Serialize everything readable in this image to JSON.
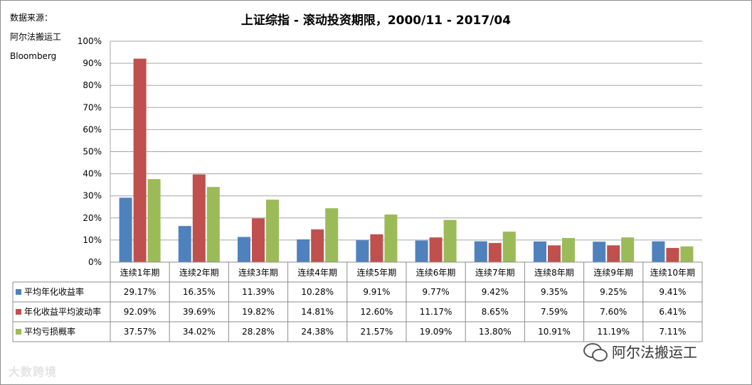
{
  "source": {
    "lines": [
      "数据来源：",
      "阿尔法搬运工",
      "Bloomberg"
    ]
  },
  "watermarks": {
    "left": "大数跨境",
    "right": "阿尔法搬运工"
  },
  "chart_data": {
    "type": "bar",
    "title": "上证综指 - 滚动投资期限，2000/11 - 2017/04",
    "xlabel": "",
    "ylabel": "",
    "ylim": [
      0,
      100
    ],
    "yticks": [
      "0%",
      "10%",
      "20%",
      "30%",
      "40%",
      "50%",
      "60%",
      "70%",
      "80%",
      "90%",
      "100%"
    ],
    "grid": true,
    "legend": "table-left",
    "categories": [
      "连续1年期",
      "连续2年期",
      "连续3年期",
      "连续4年期",
      "连续5年期",
      "连续6年期",
      "连续7年期",
      "连续8年期",
      "连续9年期",
      "连续10年期"
    ],
    "series": [
      {
        "name": "平均年化收益率",
        "color": "#4f81bd",
        "values": [
          29.17,
          16.35,
          11.39,
          10.28,
          9.91,
          9.77,
          9.42,
          9.35,
          9.25,
          9.41
        ],
        "labels": [
          "29.17%",
          "16.35%",
          "11.39%",
          "10.28%",
          "9.91%",
          "9.77%",
          "9.42%",
          "9.35%",
          "9.25%",
          "9.41%"
        ]
      },
      {
        "name": "年化收益平均波动率",
        "color": "#c0504d",
        "values": [
          92.09,
          39.69,
          19.82,
          14.81,
          12.6,
          11.17,
          8.65,
          7.59,
          7.6,
          6.41
        ],
        "labels": [
          "92.09%",
          "39.69%",
          "19.82%",
          "14.81%",
          "12.60%",
          "11.17%",
          "8.65%",
          "7.59%",
          "7.60%",
          "6.41%"
        ]
      },
      {
        "name": "平均亏损概率",
        "color": "#9bbb59",
        "values": [
          37.57,
          34.02,
          28.28,
          24.38,
          21.57,
          19.09,
          13.8,
          10.91,
          11.19,
          7.11
        ],
        "labels": [
          "37.57%",
          "34.02%",
          "28.28%",
          "24.38%",
          "21.57%",
          "19.09%",
          "13.80%",
          "10.91%",
          "11.19%",
          "7.11%"
        ]
      }
    ]
  }
}
